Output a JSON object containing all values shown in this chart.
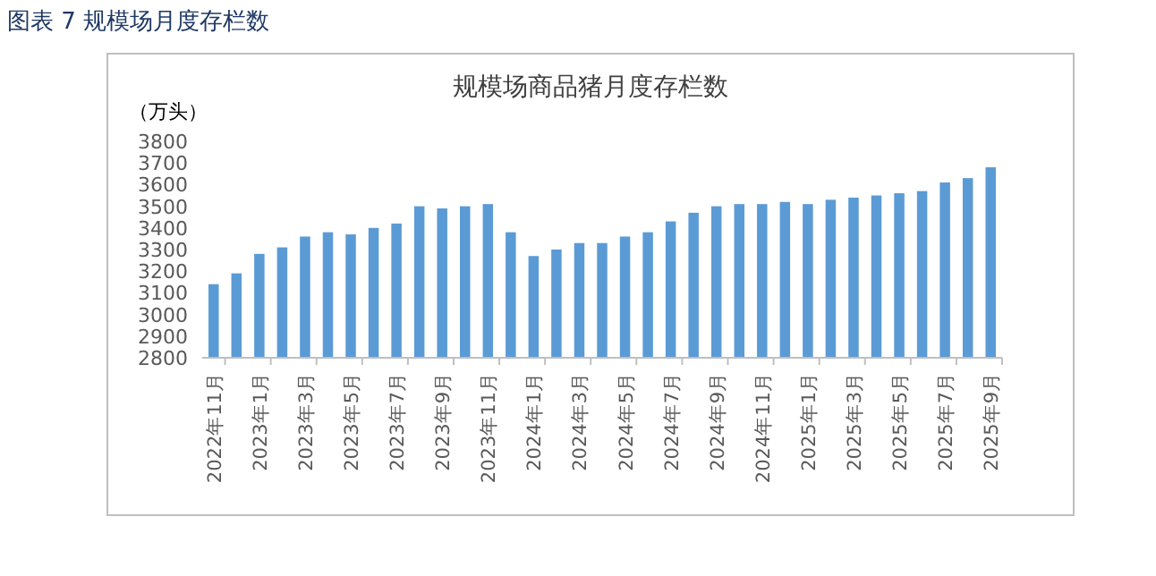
{
  "chart_data": {
    "type": "bar",
    "title": "规模场商品猪月度存栏数",
    "ylabel": "（万头）",
    "annotations": [
      "图表 7  规模场月度存栏数"
    ],
    "categories": [
      "2022年11月",
      null,
      "2023年1月",
      null,
      "2023年3月",
      null,
      "2023年5月",
      null,
      "2023年7月",
      null,
      "2023年9月",
      null,
      "2023年11月",
      null,
      "2024年1月",
      null,
      "2024年3月",
      null,
      "2024年5月",
      null,
      "2024年7月",
      null,
      "2024年9月",
      null,
      "2024年11月",
      null,
      "2025年1月",
      null,
      "2025年3月",
      null,
      "2025年5月",
      null,
      "2025年7月",
      null,
      "2025年9月"
    ],
    "values": [
      3140,
      3190,
      3280,
      3310,
      3360,
      3380,
      3370,
      3400,
      3420,
      3500,
      3490,
      3500,
      3510,
      3380,
      3270,
      3300,
      3330,
      3330,
      3360,
      3380,
      3430,
      3470,
      3500,
      3510,
      3510,
      3520,
      3510,
      3530,
      3540,
      3550,
      3560,
      3570,
      3610,
      3630,
      3680
    ],
    "color": "#5b9bd5",
    "ylim": [
      2800,
      3800
    ],
    "yticks": [
      2800,
      2900,
      3000,
      3100,
      3200,
      3300,
      3400,
      3500,
      3600,
      3700,
      3800
    ],
    "grid": false
  }
}
